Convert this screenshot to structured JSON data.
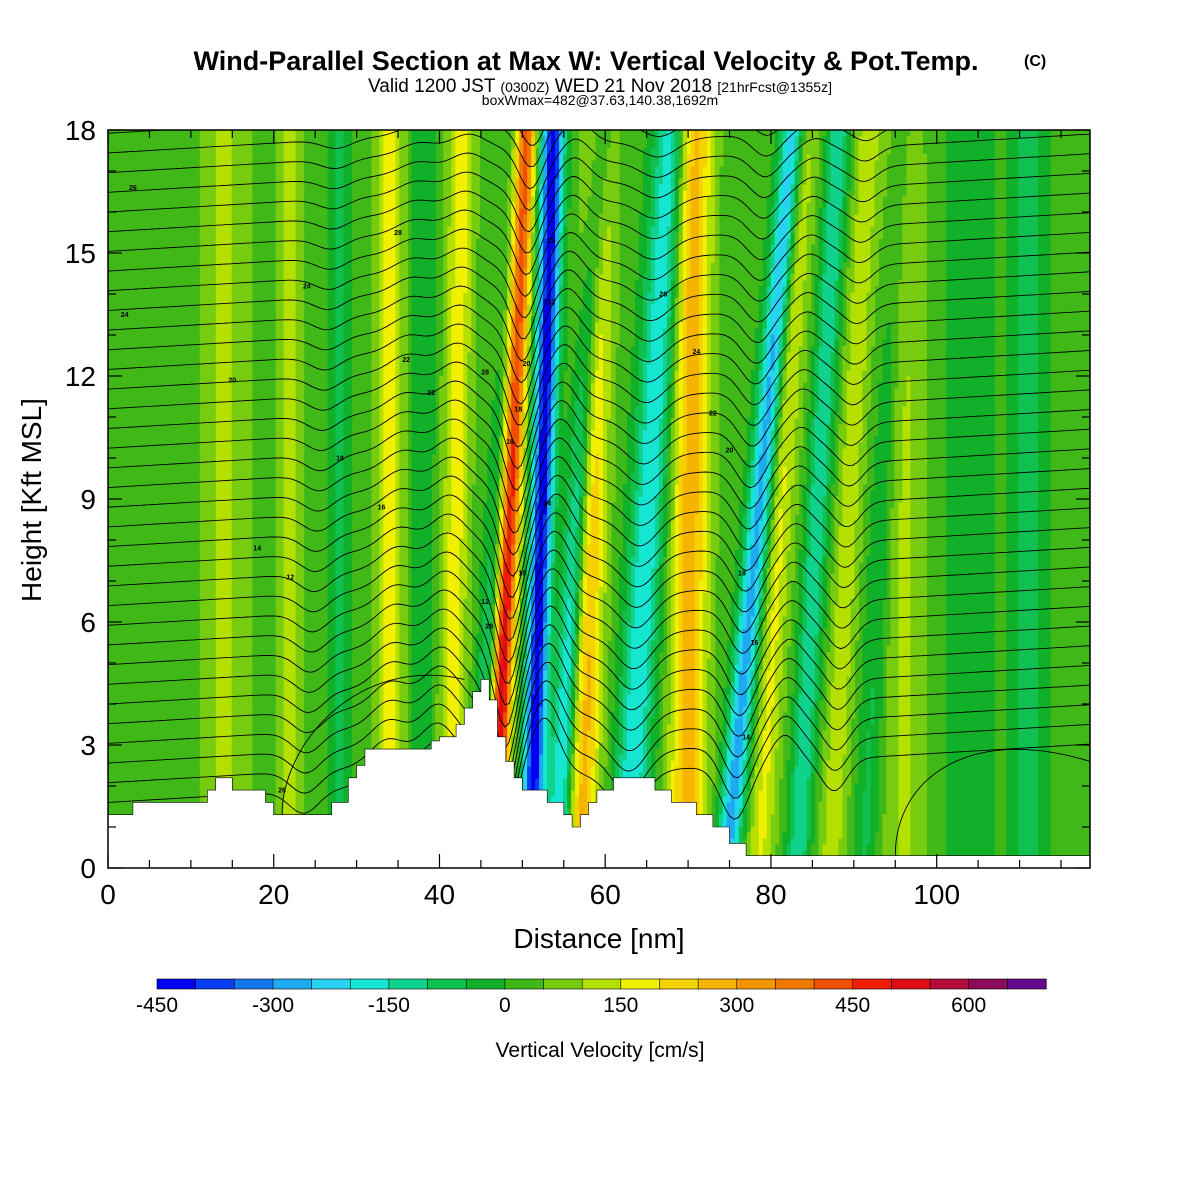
{
  "chart_data": {
    "type": "heatmap",
    "title": "Wind-Parallel Section at Max W: Vertical Velocity & Pot.Temp.",
    "title_mark": "(C)",
    "subtitle_prefix": "Valid 1200 JST",
    "subtitle_utc": "(0300Z)",
    "subtitle_date": "WED 21 Nov 2018",
    "subtitle_fcst": "[21hrFcst@1355z]",
    "subtitle2": "boxWmax=482@37.63,140.38,1692m",
    "xlabel": "Distance [nm]",
    "ylabel": "Height [Kft MSL]",
    "xlim": [
      0,
      118.5
    ],
    "ylim": [
      0,
      18
    ],
    "xticks": [
      "0",
      "20",
      "40",
      "60",
      "80",
      "100"
    ],
    "xtick_values": [
      0,
      20,
      40,
      60,
      80,
      100
    ],
    "yticks": [
      "0",
      "3",
      "6",
      "9",
      "12",
      "15",
      "18"
    ],
    "ytick_values": [
      0,
      3,
      6,
      9,
      12,
      15,
      18
    ],
    "colorbar": {
      "label": "Vertical Velocity [cm/s]",
      "tick_labels": [
        "-450",
        "-300",
        "-150",
        "0",
        "150",
        "300",
        "450",
        "600"
      ],
      "tick_values": [
        -450,
        -300,
        -150,
        0,
        150,
        300,
        450,
        600
      ],
      "min": -450,
      "max": 700,
      "step": 50,
      "colors": [
        "#0000f0",
        "#0a3cf0",
        "#1478f0",
        "#1eaaf0",
        "#28d2f0",
        "#14e6d2",
        "#10d28c",
        "#10c050",
        "#10b028",
        "#40b818",
        "#78cc10",
        "#b4e000",
        "#f0f000",
        "#f5d200",
        "#f5b400",
        "#f59600",
        "#f07800",
        "#f05000",
        "#f01e00",
        "#e00a14",
        "#b40a3c",
        "#8c0a5a",
        "#640a8c"
      ]
    },
    "terrain_kft": [
      [
        0,
        1.3
      ],
      [
        3,
        1.3
      ],
      [
        3,
        1.6
      ],
      [
        12,
        1.6
      ],
      [
        12,
        1.9
      ],
      [
        13,
        1.9
      ],
      [
        13,
        2.2
      ],
      [
        15,
        2.2
      ],
      [
        15,
        1.9
      ],
      [
        19,
        1.9
      ],
      [
        19,
        1.6
      ],
      [
        20,
        1.6
      ],
      [
        20,
        1.3
      ],
      [
        27,
        1.3
      ],
      [
        27,
        1.6
      ],
      [
        29,
        1.6
      ],
      [
        29,
        2.2
      ],
      [
        30,
        2.2
      ],
      [
        30,
        2.5
      ],
      [
        31,
        2.5
      ],
      [
        31,
        2.9
      ],
      [
        39,
        2.9
      ],
      [
        39,
        3.1
      ],
      [
        40,
        3.1
      ],
      [
        40,
        3.2
      ],
      [
        42,
        3.2
      ],
      [
        42,
        3.5
      ],
      [
        43,
        3.5
      ],
      [
        43,
        3.9
      ],
      [
        44,
        3.9
      ],
      [
        44,
        4.3
      ],
      [
        45,
        4.3
      ],
      [
        45,
        4.6
      ],
      [
        46,
        4.6
      ],
      [
        46,
        4.1
      ],
      [
        47,
        4.1
      ],
      [
        47,
        3.2
      ],
      [
        48,
        3.2
      ],
      [
        48,
        2.6
      ],
      [
        49,
        2.6
      ],
      [
        49,
        2.2
      ],
      [
        50,
        2.2
      ],
      [
        50,
        1.9
      ],
      [
        53,
        1.9
      ],
      [
        53,
        1.6
      ],
      [
        55,
        1.6
      ],
      [
        55,
        1.3
      ],
      [
        56,
        1.3
      ],
      [
        56,
        1.0
      ],
      [
        57,
        1.0
      ],
      [
        57,
        1.3
      ],
      [
        58,
        1.3
      ],
      [
        58,
        1.6
      ],
      [
        59,
        1.6
      ],
      [
        59,
        1.9
      ],
      [
        61,
        1.9
      ],
      [
        61,
        2.2
      ],
      [
        66,
        2.2
      ],
      [
        66,
        1.9
      ],
      [
        68,
        1.9
      ],
      [
        68,
        1.6
      ],
      [
        71,
        1.6
      ],
      [
        71,
        1.3
      ],
      [
        73,
        1.3
      ],
      [
        73,
        1.0
      ],
      [
        75,
        1.0
      ],
      [
        75,
        0.6
      ],
      [
        77,
        0.6
      ],
      [
        77,
        0.3
      ],
      [
        118.5,
        0.3
      ]
    ],
    "theta_labels": [
      "26",
      "28",
      "24",
      "24",
      "22",
      "22",
      "20",
      "18",
      "16",
      "14",
      "12",
      "26",
      "28",
      "24",
      "22",
      "20",
      "18",
      "16",
      "14",
      "10",
      "12",
      "28",
      "26",
      "24",
      "22",
      "20",
      "18",
      "16",
      "14"
    ]
  }
}
